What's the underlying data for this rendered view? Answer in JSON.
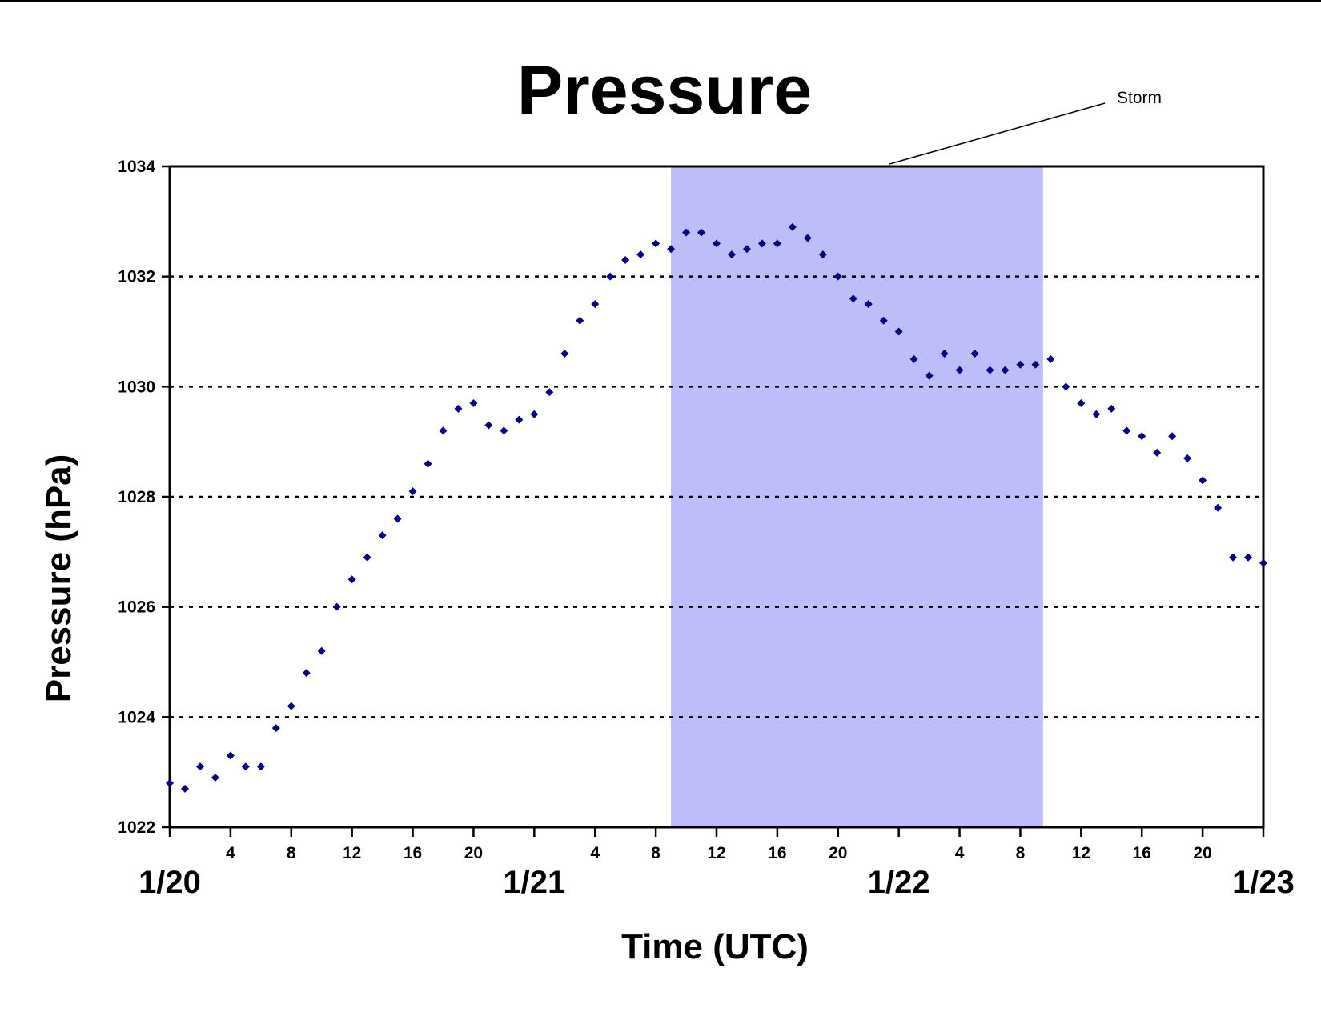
{
  "chart_data": {
    "type": "scatter",
    "title": "Pressure",
    "xlabel": "Time (UTC)",
    "ylabel": "Pressure (hPa)",
    "ylim": [
      1022,
      1034
    ],
    "yticks": [
      "1022",
      "1024",
      "1026",
      "1028",
      "1030",
      "1032",
      "1034"
    ],
    "xlim_hours": [
      0,
      72
    ],
    "hour_tick_labels": [
      {
        "h": 4,
        "label": "4"
      },
      {
        "h": 8,
        "label": "8"
      },
      {
        "h": 12,
        "label": "12"
      },
      {
        "h": 16,
        "label": "16"
      },
      {
        "h": 20,
        "label": "20"
      },
      {
        "h": 28,
        "label": "4"
      },
      {
        "h": 32,
        "label": "8"
      },
      {
        "h": 36,
        "label": "12"
      },
      {
        "h": 40,
        "label": "16"
      },
      {
        "h": 44,
        "label": "20"
      },
      {
        "h": 52,
        "label": "4"
      },
      {
        "h": 56,
        "label": "8"
      },
      {
        "h": 60,
        "label": "12"
      },
      {
        "h": 64,
        "label": "16"
      },
      {
        "h": 68,
        "label": "20"
      }
    ],
    "day_labels": [
      {
        "h": 0,
        "label": "1/20"
      },
      {
        "h": 24,
        "label": "1/21"
      },
      {
        "h": 48,
        "label": "1/22"
      },
      {
        "h": 72,
        "label": "1/23"
      }
    ],
    "grid": "horizontal dotted",
    "highlight": {
      "label": "Storm",
      "x_start_hours": 33,
      "x_end_hours": 57.5,
      "color": "#bdbdfa"
    },
    "marker_color": "#000080",
    "series": [
      {
        "x_hours": [
          0,
          1,
          2,
          3,
          4,
          5,
          6,
          7,
          8,
          9,
          10,
          11,
          12,
          13,
          14,
          15,
          16,
          17,
          18,
          19,
          20,
          21,
          22,
          23,
          24,
          25,
          26,
          27,
          28,
          29,
          30,
          31,
          32,
          33,
          34,
          35,
          36,
          37,
          38,
          39,
          40,
          41,
          42,
          43,
          44,
          45,
          46,
          47,
          48,
          49,
          50,
          51,
          52,
          53,
          54,
          55,
          56,
          57,
          58,
          59,
          60,
          61,
          62,
          63,
          64,
          65,
          66,
          67,
          68,
          69,
          70,
          71,
          72
        ],
        "values": [
          1022.8,
          1022.7,
          1023.1,
          1022.9,
          1023.3,
          1023.1,
          1023.1,
          1023.8,
          1024.2,
          1024.8,
          1025.2,
          1026.0,
          1026.5,
          1026.9,
          1027.3,
          1027.6,
          1028.1,
          1028.6,
          1029.2,
          1029.6,
          1029.7,
          1029.3,
          1029.2,
          1029.4,
          1029.5,
          1029.9,
          1030.6,
          1031.2,
          1031.5,
          1032.0,
          1032.3,
          1032.4,
          1032.6,
          1032.5,
          1032.8,
          1032.8,
          1032.6,
          1032.4,
          1032.5,
          1032.6,
          1032.6,
          1032.9,
          1032.7,
          1032.4,
          1032.0,
          1031.6,
          1031.5,
          1031.2,
          1031.0,
          1030.5,
          1030.2,
          1030.6,
          1030.3,
          1030.6,
          1030.3,
          1030.3,
          1030.4,
          1030.4,
          1030.5,
          1030.0,
          1029.7,
          1029.5,
          1029.6,
          1029.2,
          1029.1,
          1028.8,
          1029.1,
          1028.7,
          1028.3,
          1027.8,
          1026.9,
          1026.9,
          1026.8
        ]
      }
    ]
  }
}
